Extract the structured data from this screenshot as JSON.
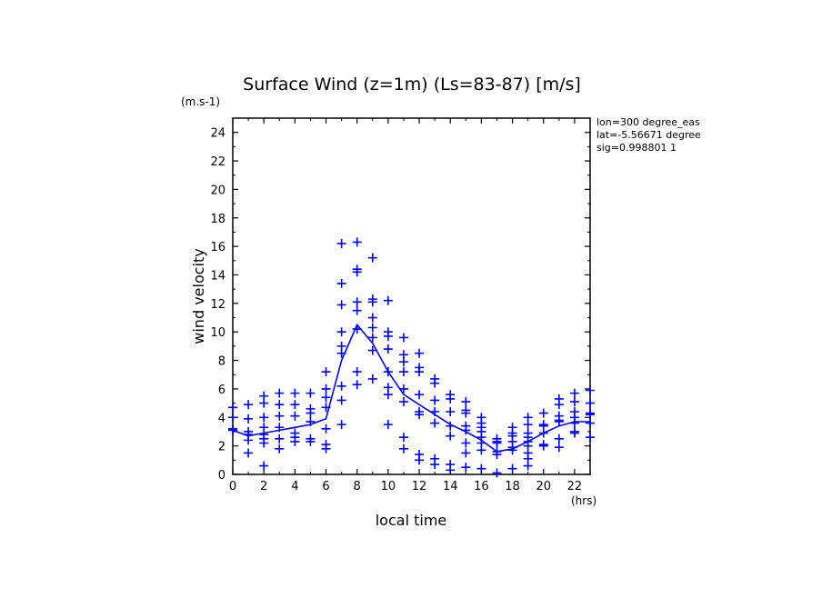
{
  "chart_data": {
    "type": "scatter",
    "title": "Surface Wind (z=1m) (Ls=83-87) [m/s]",
    "xlabel": "local time",
    "ylabel": "wind velocity",
    "x_unit": "(hrs)",
    "y_unit": "(m.s-1)",
    "xlim": [
      0,
      23
    ],
    "ylim": [
      0,
      25
    ],
    "x_ticks": [
      0,
      2,
      4,
      6,
      8,
      10,
      12,
      14,
      16,
      18,
      20,
      22
    ],
    "y_ticks": [
      0,
      2,
      4,
      6,
      8,
      10,
      12,
      14,
      16,
      18,
      20,
      22,
      24
    ],
    "grid": false,
    "annotations": [
      "lon=300 degree_eas",
      "lat=-5.56671 degree",
      "sig=0.998801 1"
    ],
    "colors": {
      "data": "#0000ff",
      "axes": "#000000"
    },
    "marker": "plus",
    "series": [
      {
        "type": "scatter",
        "points": [
          [
            0,
            4.7
          ],
          [
            0,
            4.0
          ],
          [
            0,
            3.2
          ],
          [
            0,
            3.1
          ],
          [
            1,
            4.9
          ],
          [
            1,
            3.9
          ],
          [
            1,
            3.0
          ],
          [
            1,
            2.8
          ],
          [
            1,
            2.4
          ],
          [
            1,
            1.5
          ],
          [
            2,
            5.5
          ],
          [
            2,
            5.0
          ],
          [
            2,
            4.0
          ],
          [
            2,
            3.3
          ],
          [
            2,
            2.8
          ],
          [
            2,
            2.5
          ],
          [
            2,
            2.2
          ],
          [
            2,
            0.6
          ],
          [
            3,
            5.7
          ],
          [
            3,
            4.9
          ],
          [
            3,
            4.1
          ],
          [
            3,
            3.3
          ],
          [
            3,
            2.5
          ],
          [
            3,
            1.8
          ],
          [
            4,
            5.7
          ],
          [
            4,
            4.9
          ],
          [
            4,
            4.1
          ],
          [
            4,
            2.9
          ],
          [
            4,
            2.6
          ],
          [
            4,
            2.3
          ],
          [
            5,
            5.7
          ],
          [
            5,
            4.6
          ],
          [
            5,
            4.3
          ],
          [
            5,
            3.7
          ],
          [
            5,
            2.5
          ],
          [
            5,
            2.3
          ],
          [
            6,
            7.2
          ],
          [
            6,
            6.0
          ],
          [
            6,
            5.4
          ],
          [
            6,
            4.7
          ],
          [
            6,
            3.2
          ],
          [
            6,
            2.1
          ],
          [
            6,
            1.8
          ],
          [
            7,
            16.2
          ],
          [
            7,
            13.4
          ],
          [
            7,
            11.9
          ],
          [
            7,
            10.0
          ],
          [
            7,
            9.0
          ],
          [
            7,
            8.5
          ],
          [
            7,
            6.2
          ],
          [
            7,
            5.2
          ],
          [
            7,
            3.5
          ],
          [
            8,
            16.3
          ],
          [
            8,
            14.4
          ],
          [
            8,
            14.2
          ],
          [
            8,
            12.1
          ],
          [
            8,
            11.5
          ],
          [
            8,
            10.2
          ],
          [
            8,
            7.2
          ],
          [
            8,
            6.3
          ],
          [
            9,
            15.2
          ],
          [
            9,
            12.3
          ],
          [
            9,
            12.1
          ],
          [
            9,
            11.0
          ],
          [
            9,
            10.3
          ],
          [
            9,
            9.6
          ],
          [
            9,
            8.7
          ],
          [
            9,
            6.7
          ],
          [
            10,
            12.2
          ],
          [
            10,
            10.0
          ],
          [
            10,
            9.7
          ],
          [
            10,
            8.8
          ],
          [
            10,
            7.2
          ],
          [
            10,
            6.1
          ],
          [
            10,
            5.6
          ],
          [
            10,
            3.5
          ],
          [
            11,
            9.6
          ],
          [
            11,
            8.4
          ],
          [
            11,
            7.9
          ],
          [
            11,
            7.2
          ],
          [
            11,
            6.0
          ],
          [
            11,
            5.1
          ],
          [
            11,
            2.6
          ],
          [
            11,
            1.8
          ],
          [
            12,
            8.5
          ],
          [
            12,
            7.5
          ],
          [
            12,
            7.2
          ],
          [
            12,
            5.6
          ],
          [
            12,
            4.4
          ],
          [
            12,
            4.2
          ],
          [
            12,
            1.4
          ],
          [
            12,
            1.0
          ],
          [
            13,
            6.7
          ],
          [
            13,
            6.4
          ],
          [
            13,
            5.2
          ],
          [
            13,
            4.4
          ],
          [
            13,
            3.6
          ],
          [
            13,
            1.1
          ],
          [
            13,
            0.7
          ],
          [
            14,
            5.6
          ],
          [
            14,
            5.3
          ],
          [
            14,
            4.4
          ],
          [
            14,
            3.4
          ],
          [
            14,
            2.7
          ],
          [
            14,
            0.7
          ],
          [
            14,
            0.3
          ],
          [
            15,
            5.1
          ],
          [
            15,
            4.5
          ],
          [
            15,
            4.3
          ],
          [
            15,
            3.4
          ],
          [
            15,
            3.1
          ],
          [
            15,
            2.2
          ],
          [
            15,
            1.5
          ],
          [
            15,
            0.5
          ],
          [
            16,
            4.0
          ],
          [
            16,
            3.6
          ],
          [
            16,
            3.3
          ],
          [
            16,
            3.0
          ],
          [
            16,
            2.6
          ],
          [
            16,
            2.2
          ],
          [
            16,
            1.7
          ],
          [
            16,
            0.4
          ],
          [
            17,
            2.5
          ],
          [
            17,
            2.3
          ],
          [
            17,
            2.2
          ],
          [
            17,
            1.6
          ],
          [
            17,
            1.4
          ],
          [
            17,
            0.1
          ],
          [
            18,
            3.3
          ],
          [
            18,
            2.9
          ],
          [
            18,
            2.7
          ],
          [
            18,
            2.3
          ],
          [
            18,
            1.9
          ],
          [
            18,
            1.7
          ],
          [
            18,
            0.4
          ],
          [
            19,
            4.0
          ],
          [
            19,
            3.5
          ],
          [
            19,
            2.9
          ],
          [
            19,
            2.6
          ],
          [
            19,
            2.3
          ],
          [
            19,
            2.0
          ],
          [
            19,
            1.5
          ],
          [
            19,
            1.1
          ],
          [
            19,
            0.6
          ],
          [
            20,
            4.3
          ],
          [
            20,
            3.5
          ],
          [
            20,
            3.4
          ],
          [
            20,
            2.9
          ],
          [
            20,
            2.1
          ],
          [
            20,
            2.0
          ],
          [
            21,
            5.3
          ],
          [
            21,
            4.9
          ],
          [
            21,
            4.1
          ],
          [
            21,
            3.8
          ],
          [
            21,
            3.7
          ],
          [
            21,
            2.5
          ],
          [
            21,
            1.9
          ],
          [
            22,
            5.7
          ],
          [
            22,
            5.1
          ],
          [
            22,
            4.4
          ],
          [
            22,
            4.0
          ],
          [
            22,
            3.6
          ],
          [
            22,
            3.0
          ],
          [
            22,
            2.9
          ],
          [
            23,
            5.9
          ],
          [
            23,
            5.0
          ],
          [
            23,
            4.3
          ],
          [
            23,
            4.2
          ],
          [
            23,
            3.6
          ],
          [
            23,
            2.6
          ]
        ]
      },
      {
        "type": "line",
        "x": [
          0,
          1,
          2,
          3,
          4,
          5,
          6,
          7,
          8,
          9,
          10,
          11,
          12,
          13,
          14,
          15,
          16,
          17,
          18,
          19,
          20,
          21,
          22,
          23
        ],
        "values": [
          3.1,
          2.7,
          2.9,
          3.1,
          3.3,
          3.5,
          3.9,
          8.0,
          10.5,
          9.2,
          7.2,
          5.6,
          4.9,
          4.2,
          3.5,
          3.0,
          2.4,
          1.6,
          1.8,
          2.3,
          2.9,
          3.4,
          3.7,
          3.7
        ]
      }
    ]
  }
}
